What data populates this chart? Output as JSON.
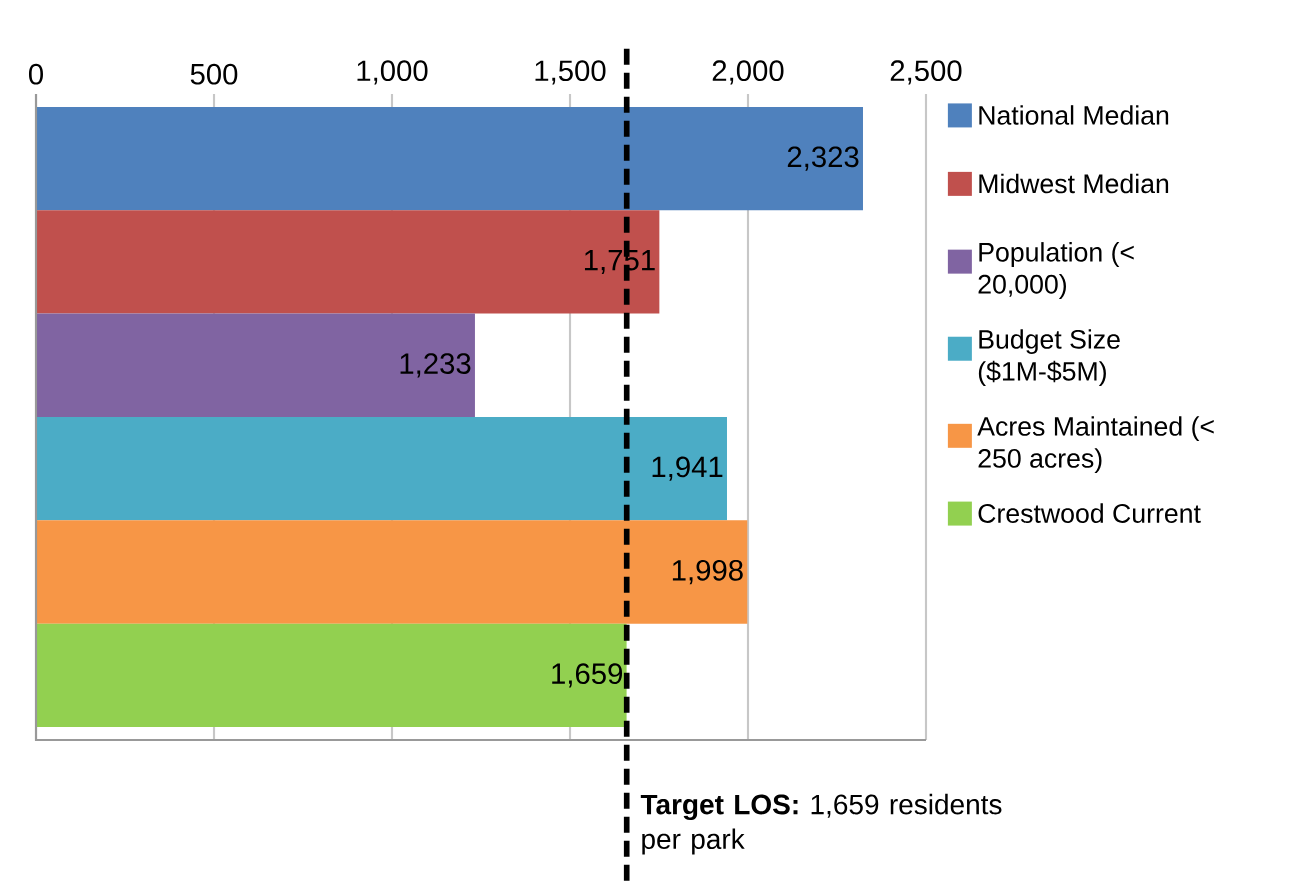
{
  "chart_data": {
    "type": "bar",
    "orientation": "horizontal",
    "categories": [
      null
    ],
    "series": [
      {
        "name": "National Median",
        "color": "#4f81bd",
        "values": [
          2323
        ],
        "value_labels": [
          "2,323"
        ]
      },
      {
        "name": "Midwest Median",
        "color": "#c0504d",
        "values": [
          1751
        ],
        "value_labels": [
          "1,751"
        ]
      },
      {
        "name": "Population (< 20,000)",
        "color": "#8064a2",
        "values": [
          1233
        ],
        "value_labels": [
          "1,233"
        ]
      },
      {
        "name": "Budget Size ($1M-$5M)",
        "color": "#4bacc6",
        "values": [
          1941
        ],
        "value_labels": [
          "1,941"
        ]
      },
      {
        "name": "Acres Maintained (< 250 acres)",
        "color": "#f79646",
        "values": [
          1998
        ],
        "value_labels": [
          "1,998"
        ]
      },
      {
        "name": "Crestwood Current",
        "color": "#92d050",
        "values": [
          1659
        ],
        "value_labels": [
          "1,659"
        ]
      }
    ],
    "xlim": [
      0,
      2500
    ],
    "xticks": [
      0,
      500,
      {
        "value": 1000,
        "label": "1,000"
      },
      {
        "value": 1500,
        "label": "1,500"
      },
      {
        "value": 2000,
        "label": "2,000"
      },
      {
        "value": 2500,
        "label": "2,500"
      }
    ],
    "grid": "x",
    "legend": "right",
    "ref_lines": [
      {
        "axis": "x",
        "value": 1659,
        "label": "**Target LOS:** 1,659 residents per park",
        "color": "#000000",
        "line_style": "dashed"
      }
    ]
  }
}
